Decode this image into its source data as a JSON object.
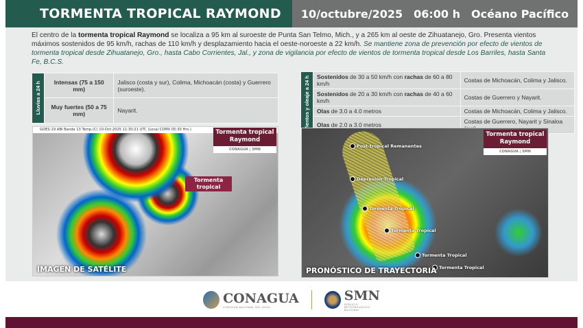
{
  "header": {
    "title": "TORMENTA TROPICAL RAYMOND",
    "date": "10/octubre/2025",
    "time": "06:00 h",
    "ocean": "Océano Pacífico"
  },
  "intro": {
    "p1a": "El centro de la ",
    "p1b": "tormenta tropical Raymond",
    "p1c": " se localiza a 95 km al suroeste de Punta San Telmo, Mich., y a 265 km al oeste de Zihuatanejo, Gro. Presenta vientos máximos sostenidos de 95 km/h, rachas de 110 km/h y desplazamiento hacia el oeste-noroeste a 22 km/h. ",
    "p1d": "Se mantiene zona de prevención por efecto de vientos de tormenta tropical desde Zihuatanejo, Gro., hasta Cabo Corrientes, Jal., y zona de vigilancia por efecto de vientos de tormenta tropical desde Los Barriles, hasta Santa Fe, B.C.S."
  },
  "rain": {
    "side": "Lluvias a 24 h",
    "rows": [
      {
        "level": "Intensas (75 a 150 mm)",
        "areas": "Jalisco (costa y sur), Colima, Michoacán (costa) y Guerrero (suroeste)."
      },
      {
        "level": "Muy fuertes (50 a 75 mm)",
        "areas": "Nayarit."
      }
    ]
  },
  "wind": {
    "side": "Vientos y oleaje a 24 h",
    "rows": [
      {
        "b1": "Sostenidos",
        "t1": " de 30 a 50 km/h con ",
        "b2": "rachas",
        "t2": " de 60 a 80 km/h",
        "areas": "Costas de Michoacán, Colima y Jalisco."
      },
      {
        "b1": "Sostenidos",
        "t1": " de 20 a 30 km/h con ",
        "b2": "rachas",
        "t2": " de 40 a 60 km/h",
        "areas": "Costas de Guerrero y Nayarit."
      },
      {
        "b1": "Olas",
        "t1": " de 3.0 a 4.0 metros",
        "b2": "",
        "t2": "",
        "areas": "Costas de Michoacán, Colima y Jalisco."
      },
      {
        "b1": "Olas",
        "t1": " de 2.0 a 3.0 metros",
        "b2": "",
        "t2": "",
        "areas": "Costas de Guerrero, Nayarit y Sinaloa (sur)."
      }
    ]
  },
  "satellite": {
    "source": "GOES-19 ABI Banda 13 Temp.(C) 10-Oct-2025 11:30:21 UTC (Local CDMX  05:30 Hrs.)",
    "badge": "Tormenta tropical Raymond",
    "badge_logos": "CONAGUA | SMN",
    "label": "Tormenta tropical",
    "caption": "IMAGEN DE SATÉLITE"
  },
  "trajectory": {
    "badge": "Tormenta tropical Raymond",
    "badge_logos": "CONAGUA | SMN",
    "points": [
      "Post-tropical Remanentes",
      "Depresión Tropical",
      "Tormenta Tropical",
      "Tormenta Tropical",
      "Tormenta Tropical",
      "Tormenta Tropical"
    ],
    "caption": "PRONÓSTICO DE TRAYECTORIA"
  },
  "footer": {
    "conagua": "CONAGUA",
    "conagua_sub": "COMISIÓN NACIONAL DEL AGUA",
    "smn": "SMN",
    "smn_sub": "SERVICIO METEOROLÓGICO NACIONAL"
  },
  "colors": {
    "green": "#235b4e",
    "gray": "#6f7271",
    "maroon": "#611232"
  }
}
